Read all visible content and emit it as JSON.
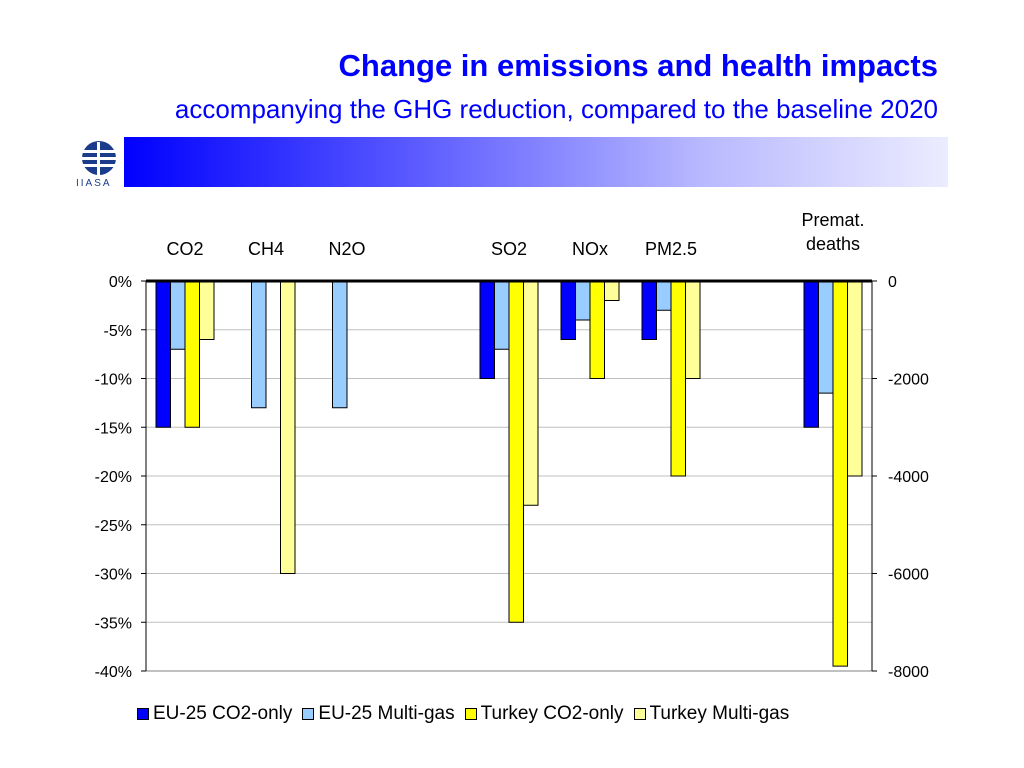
{
  "header": {
    "title": "Change in emissions and health impacts",
    "subtitle": "accompanying the GHG reduction, compared to the baseline 2020",
    "logo_text": "IIASA",
    "accent_color": "#0000ff"
  },
  "chart_data": {
    "type": "bar",
    "categories": [
      "CO2",
      "CH4",
      "N2O",
      "SO2",
      "NOx",
      "PM2.5",
      "Premat. deaths"
    ],
    "left_axis": {
      "ticks": [
        "0%",
        "-5%",
        "-10%",
        "-15%",
        "-20%",
        "-25%",
        "-30%",
        "-35%",
        "-40%"
      ],
      "ylim": [
        -40,
        0
      ],
      "unit": "%"
    },
    "right_axis": {
      "ticks": [
        "0",
        "-2000",
        "-4000",
        "-6000",
        "-8000"
      ],
      "ylim": [
        -8000,
        0
      ],
      "applies_to": "Premat. deaths"
    },
    "series": [
      {
        "name": "EU-25 CO2-only",
        "color": "#0000ff",
        "values": [
          -15,
          null,
          null,
          -10,
          -6,
          -6,
          -3000
        ]
      },
      {
        "name": "EU-25 Multi-gas",
        "color": "#99ccff",
        "values": [
          -7,
          -13,
          -13,
          -7,
          -4,
          -3,
          -2300
        ]
      },
      {
        "name": "Turkey CO2-only",
        "color": "#ffff00",
        "values": [
          -15,
          null,
          null,
          -35,
          -10,
          -20,
          -7900
        ]
      },
      {
        "name": "Turkey Multi-gas",
        "color": "#ffff99",
        "values": [
          -6,
          -30,
          null,
          -23,
          -2,
          -10,
          -4000
        ]
      }
    ],
    "grid": true,
    "legend_position": "bottom"
  }
}
